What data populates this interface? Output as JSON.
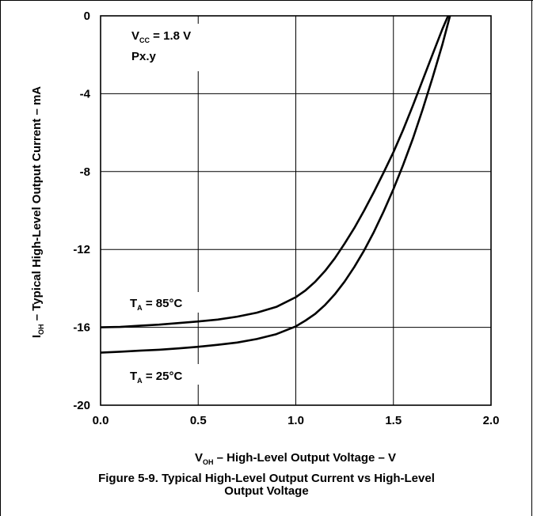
{
  "caption": {
    "line1": "Figure 5-9. Typical High-Level Output Current vs High-Level",
    "line2": "Output Voltage"
  },
  "chart_data": {
    "type": "line",
    "title": "",
    "xlabel": {
      "main": "V",
      "sub": "OH",
      "rest": " – High-Level Output Voltage – V"
    },
    "ylabel": {
      "main": "I",
      "sub": "OH",
      "rest": " – Typical High-Level Output Current – mA"
    },
    "xlim": [
      0,
      2
    ],
    "ylim": [
      -20,
      0
    ],
    "x_ticks": [
      "0.0",
      "0.5",
      "1.0",
      "1.5",
      "2.0"
    ],
    "x_tick_values": [
      0,
      0.5,
      1,
      1.5,
      2
    ],
    "y_ticks": [
      "0",
      "-4",
      "-8",
      "-12",
      "-16",
      "-20"
    ],
    "y_tick_values": [
      0,
      -4,
      -8,
      -12,
      -16,
      -20
    ],
    "grid": true,
    "annotations": {
      "vcc": {
        "main": "V",
        "sub": "CC",
        "rest": " = 1.8 V"
      },
      "part": "Px.y"
    },
    "series": [
      {
        "name": {
          "main": "T",
          "sub": "A",
          "rest": " = 85°C"
        },
        "x": [
          0.0,
          0.1,
          0.2,
          0.3,
          0.4,
          0.5,
          0.6,
          0.7,
          0.8,
          0.9,
          1.0,
          1.05,
          1.1,
          1.15,
          1.2,
          1.25,
          1.3,
          1.35,
          1.4,
          1.45,
          1.5,
          1.55,
          1.6,
          1.65,
          1.7,
          1.75,
          1.78
        ],
        "y": [
          -16.0,
          -15.98,
          -15.92,
          -15.86,
          -15.78,
          -15.7,
          -15.6,
          -15.45,
          -15.25,
          -14.95,
          -14.45,
          -14.1,
          -13.65,
          -13.1,
          -12.45,
          -11.7,
          -10.9,
          -10.0,
          -9.05,
          -8.05,
          -7.0,
          -5.85,
          -4.6,
          -3.3,
          -2.0,
          -0.7,
          0.0
        ]
      },
      {
        "name": {
          "main": "T",
          "sub": "A",
          "rest": " = 25°C"
        },
        "x": [
          0.0,
          0.1,
          0.2,
          0.3,
          0.4,
          0.5,
          0.6,
          0.7,
          0.8,
          0.9,
          1.0,
          1.05,
          1.1,
          1.15,
          1.2,
          1.25,
          1.3,
          1.35,
          1.4,
          1.45,
          1.5,
          1.55,
          1.6,
          1.65,
          1.7,
          1.75,
          1.79
        ],
        "y": [
          -17.3,
          -17.25,
          -17.2,
          -17.15,
          -17.08,
          -17.0,
          -16.9,
          -16.78,
          -16.6,
          -16.35,
          -15.95,
          -15.65,
          -15.3,
          -14.85,
          -14.3,
          -13.65,
          -12.9,
          -12.05,
          -11.1,
          -10.05,
          -8.9,
          -7.65,
          -6.3,
          -4.8,
          -3.2,
          -1.5,
          0.0
        ]
      }
    ]
  }
}
